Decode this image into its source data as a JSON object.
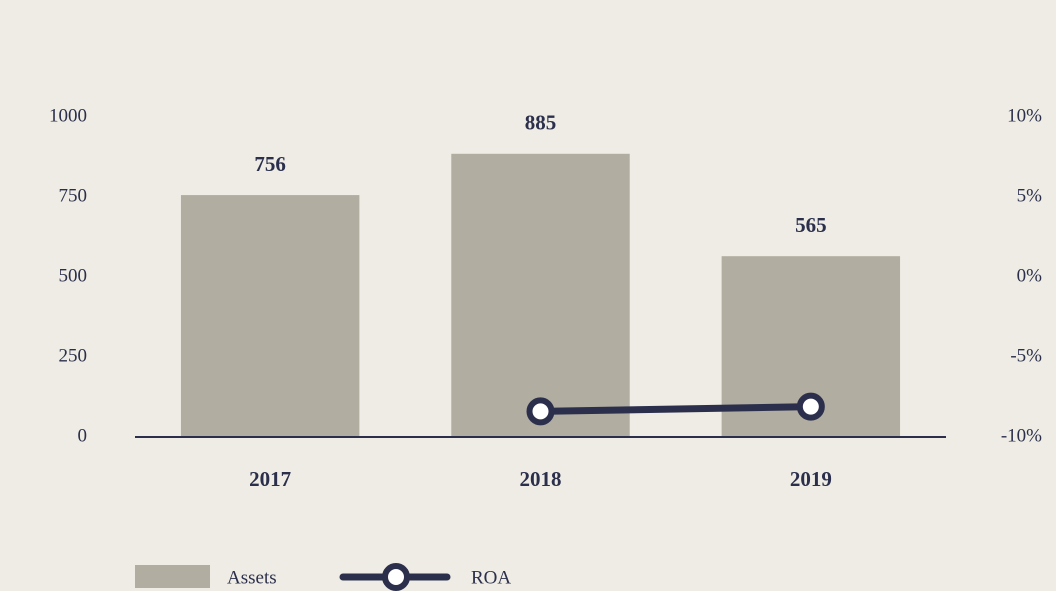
{
  "chart_data": {
    "type": "bar_line",
    "categories": [
      "2017",
      "2018",
      "2019"
    ],
    "series": [
      {
        "name": "Assets",
        "type": "bar",
        "color": "#b1ada0",
        "values": [
          756,
          885,
          565
        ]
      },
      {
        "name": "ROA",
        "type": "line",
        "axis": "y2",
        "color": "#2b2f4c",
        "values": [
          null,
          -8.4,
          -8.1
        ]
      }
    ],
    "ylim": [
      0,
      1000
    ],
    "yticks": [
      0,
      250,
      500,
      750,
      1000
    ],
    "y2lim": [
      -10,
      10
    ],
    "y2ticks": [
      {
        "value": -10,
        "label": "-10%"
      },
      {
        "value": -5,
        "label": "-5%"
      },
      {
        "value": 0,
        "label": "0%"
      },
      {
        "value": 5,
        "label": "5%"
      },
      {
        "value": 10,
        "label": "10%"
      }
    ],
    "legend": "bottom-left"
  }
}
